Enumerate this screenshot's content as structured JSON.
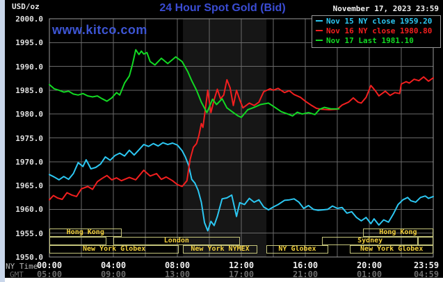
{
  "header": {
    "title": "24 Hour Spot Gold (Bid)",
    "timestamp": "November 17, 2023 23:59",
    "watermark": "www.kitco.com",
    "unit_label": "USD/oz"
  },
  "legend": [
    {
      "label": "Nov 15 NY close 1959.20",
      "color": "#2cc7f2"
    },
    {
      "label": "Nov 16 NY close 1980.80",
      "color": "#f21f1f"
    },
    {
      "label": "Nov 17 Last 1981.10",
      "color": "#12d923"
    }
  ],
  "axes": {
    "ny_time_label": "NY Time",
    "gmt_label": "GMT",
    "y_ticks": [
      "2000.0",
      "1995.0",
      "1990.0",
      "1985.0",
      "1980.0",
      "1975.0",
      "1970.0",
      "1965.0",
      "1960.0",
      "1955.0",
      "1950.0"
    ],
    "x_tick_hours": [
      0,
      4,
      8,
      12,
      16,
      20,
      24
    ],
    "x_ticks_ny": [
      "00:00",
      "04:00",
      "08:00",
      "12:00",
      "16:00",
      "20:00",
      "23:59"
    ],
    "x_ticks_gmt": [
      "05:00",
      "09:00",
      "13:00",
      "17:00",
      "21:00",
      "01:00",
      "04:59"
    ]
  },
  "sessions": [
    {
      "row": 1,
      "start": 0,
      "end": 4.5,
      "label": "Hong Kong"
    },
    {
      "row": 1,
      "start": 19.6,
      "end": 24,
      "label": "Hong Kong"
    },
    {
      "row": 2,
      "start": 0,
      "end": 3.55,
      "label": ""
    },
    {
      "row": 2,
      "start": 4.0,
      "end": 11.9,
      "label": "London"
    },
    {
      "row": 2,
      "start": 17.05,
      "end": 23.05,
      "label": "Sydney"
    },
    {
      "row": 2,
      "start": 23.05,
      "end": 24,
      "label": ""
    },
    {
      "row": 3,
      "start": 0,
      "end": 8.1,
      "label": "New York Globex"
    },
    {
      "row": 3,
      "start": 8.35,
      "end": 13.0,
      "label": "New York NYMEX"
    },
    {
      "row": 3,
      "start": 13.55,
      "end": 17.45,
      "label": "NY Globex"
    },
    {
      "row": 3,
      "start": 18.8,
      "end": 24,
      "label": "New York Globex"
    }
  ],
  "chart_data": {
    "type": "line",
    "title": "24 Hour Spot Gold (Bid)",
    "xlabel": "NY Time (hours 00:00-23:59)",
    "ylabel": "USD/oz",
    "ylim": [
      1950,
      2000
    ],
    "xlim_hours": [
      0,
      24
    ],
    "y_grid_step": 5,
    "x_grid_step_hours": 2,
    "grid": true,
    "legend_position": "top-right",
    "nymex_band_hours": [
      8.35,
      13.57
    ],
    "series": [
      {
        "name": "Nov 15 (NY close 1959.20)",
        "color": "#2cc7f2",
        "points": [
          [
            0,
            1967.3
          ],
          [
            0.3,
            1966.8
          ],
          [
            0.6,
            1966.2
          ],
          [
            0.9,
            1966.9
          ],
          [
            1.2,
            1966.3
          ],
          [
            1.5,
            1967.5
          ],
          [
            1.8,
            1969.8
          ],
          [
            2.1,
            1969.0
          ],
          [
            2.3,
            1970.4
          ],
          [
            2.6,
            1968.5
          ],
          [
            2.9,
            1968.8
          ],
          [
            3.2,
            1969.5
          ],
          [
            3.5,
            1971.0
          ],
          [
            3.8,
            1970.3
          ],
          [
            4.1,
            1971.3
          ],
          [
            4.4,
            1971.8
          ],
          [
            4.7,
            1971.2
          ],
          [
            5.0,
            1972.4
          ],
          [
            5.3,
            1971.4
          ],
          [
            5.6,
            1972.5
          ],
          [
            5.9,
            1973.6
          ],
          [
            6.2,
            1973.2
          ],
          [
            6.5,
            1973.8
          ],
          [
            6.8,
            1973.3
          ],
          [
            7.1,
            1974.0
          ],
          [
            7.4,
            1973.6
          ],
          [
            7.7,
            1973.9
          ],
          [
            8.0,
            1973.5
          ],
          [
            8.3,
            1972.3
          ],
          [
            8.5,
            1971.0
          ],
          [
            8.7,
            1969.3
          ],
          [
            8.9,
            1966.3
          ],
          [
            9.1,
            1965.5
          ],
          [
            9.3,
            1964.0
          ],
          [
            9.5,
            1961.5
          ],
          [
            9.7,
            1957.2
          ],
          [
            9.9,
            1955.5
          ],
          [
            10.1,
            1957.5
          ],
          [
            10.3,
            1956.6
          ],
          [
            10.5,
            1958.5
          ],
          [
            10.8,
            1962.2
          ],
          [
            11.1,
            1962.4
          ],
          [
            11.4,
            1963.0
          ],
          [
            11.7,
            1958.5
          ],
          [
            11.9,
            1961.4
          ],
          [
            12.2,
            1961.0
          ],
          [
            12.5,
            1962.3
          ],
          [
            12.8,
            1961.5
          ],
          [
            13.1,
            1962.0
          ],
          [
            13.4,
            1960.5
          ],
          [
            13.7,
            1959.9
          ],
          [
            14.0,
            1960.5
          ],
          [
            14.3,
            1961.0
          ],
          [
            14.7,
            1961.9
          ],
          [
            15.0,
            1962.0
          ],
          [
            15.3,
            1962.2
          ],
          [
            15.6,
            1961.5
          ],
          [
            15.9,
            1960.2
          ],
          [
            16.2,
            1960.8
          ],
          [
            16.5,
            1960.0
          ],
          [
            16.8,
            1959.8
          ],
          [
            17.1,
            1959.9
          ],
          [
            17.4,
            1960.0
          ],
          [
            17.7,
            1960.7
          ],
          [
            18.0,
            1960.2
          ],
          [
            18.3,
            1960.4
          ],
          [
            18.6,
            1959.2
          ],
          [
            18.9,
            1959.5
          ],
          [
            19.2,
            1958.3
          ],
          [
            19.5,
            1957.6
          ],
          [
            19.8,
            1958.3
          ],
          [
            20.1,
            1957.0
          ],
          [
            20.3,
            1958.0
          ],
          [
            20.6,
            1956.7
          ],
          [
            20.9,
            1957.8
          ],
          [
            21.2,
            1957.3
          ],
          [
            21.5,
            1959.0
          ],
          [
            21.8,
            1961.0
          ],
          [
            22.1,
            1962.0
          ],
          [
            22.4,
            1962.5
          ],
          [
            22.6,
            1961.8
          ],
          [
            22.9,
            1961.5
          ],
          [
            23.2,
            1962.5
          ],
          [
            23.5,
            1962.8
          ],
          [
            23.7,
            1962.3
          ],
          [
            24,
            1962.7
          ]
        ]
      },
      {
        "name": "Nov 16 (NY close 1980.80)",
        "color": "#f21f1f",
        "points": [
          [
            0,
            1962.0
          ],
          [
            0.25,
            1962.9
          ],
          [
            0.5,
            1962.4
          ],
          [
            0.8,
            1962.1
          ],
          [
            1.1,
            1963.5
          ],
          [
            1.4,
            1963.0
          ],
          [
            1.7,
            1962.7
          ],
          [
            2.0,
            1964.3
          ],
          [
            2.4,
            1964.8
          ],
          [
            2.7,
            1964.2
          ],
          [
            3.0,
            1965.8
          ],
          [
            3.3,
            1966.5
          ],
          [
            3.6,
            1967.1
          ],
          [
            3.9,
            1966.2
          ],
          [
            4.2,
            1966.6
          ],
          [
            4.5,
            1966.0
          ],
          [
            5.0,
            1966.7
          ],
          [
            5.4,
            1966.2
          ],
          [
            5.9,
            1968.2
          ],
          [
            6.3,
            1967.0
          ],
          [
            6.7,
            1967.5
          ],
          [
            7.0,
            1966.3
          ],
          [
            7.3,
            1966.8
          ],
          [
            7.7,
            1966.0
          ],
          [
            8.0,
            1965.2
          ],
          [
            8.3,
            1964.8
          ],
          [
            8.6,
            1966.0
          ],
          [
            8.8,
            1970.5
          ],
          [
            9.0,
            1973.0
          ],
          [
            9.2,
            1973.8
          ],
          [
            9.35,
            1975.5
          ],
          [
            9.5,
            1978.0
          ],
          [
            9.6,
            1977.2
          ],
          [
            9.75,
            1981.0
          ],
          [
            9.9,
            1985.0
          ],
          [
            10.1,
            1980.3
          ],
          [
            10.3,
            1983.0
          ],
          [
            10.5,
            1985.2
          ],
          [
            10.7,
            1983.2
          ],
          [
            10.9,
            1984.0
          ],
          [
            11.1,
            1987.2
          ],
          [
            11.3,
            1985.5
          ],
          [
            11.5,
            1981.8
          ],
          [
            11.7,
            1985.0
          ],
          [
            11.9,
            1983.0
          ],
          [
            12.1,
            1981.3
          ],
          [
            12.5,
            1982.3
          ],
          [
            12.8,
            1981.8
          ],
          [
            13.1,
            1982.5
          ],
          [
            13.4,
            1984.7
          ],
          [
            13.8,
            1985.3
          ],
          [
            14.0,
            1985.0
          ],
          [
            14.3,
            1985.4
          ],
          [
            14.7,
            1984.5
          ],
          [
            15.0,
            1984.9
          ],
          [
            15.3,
            1984.1
          ],
          [
            15.7,
            1983.5
          ],
          [
            16.0,
            1982.7
          ],
          [
            16.4,
            1981.8
          ],
          [
            16.7,
            1981.2
          ],
          [
            17.0,
            1981.0
          ],
          [
            17.5,
            1980.9
          ],
          [
            18.0,
            1981.0
          ],
          [
            18.3,
            1981.9
          ],
          [
            18.7,
            1982.5
          ],
          [
            19.0,
            1983.4
          ],
          [
            19.3,
            1982.5
          ],
          [
            19.5,
            1982.3
          ],
          [
            19.8,
            1983.5
          ],
          [
            20.1,
            1986.0
          ],
          [
            20.4,
            1984.8
          ],
          [
            20.6,
            1983.8
          ],
          [
            21.0,
            1984.8
          ],
          [
            21.3,
            1983.9
          ],
          [
            21.6,
            1984.5
          ],
          [
            21.9,
            1984.3
          ],
          [
            22.0,
            1986.3
          ],
          [
            22.3,
            1986.8
          ],
          [
            22.5,
            1986.5
          ],
          [
            22.8,
            1987.3
          ],
          [
            23.1,
            1987.0
          ],
          [
            23.4,
            1987.8
          ],
          [
            23.7,
            1986.9
          ],
          [
            24,
            1987.6
          ]
        ]
      },
      {
        "name": "Nov 17 (Last 1981.10)",
        "color": "#12d923",
        "points": [
          [
            0,
            1986.2
          ],
          [
            0.3,
            1985.3
          ],
          [
            0.6,
            1985.0
          ],
          [
            0.9,
            1984.6
          ],
          [
            1.2,
            1984.8
          ],
          [
            1.5,
            1984.2
          ],
          [
            1.8,
            1984.0
          ],
          [
            2.1,
            1984.3
          ],
          [
            2.4,
            1983.8
          ],
          [
            2.7,
            1983.6
          ],
          [
            3.0,
            1983.8
          ],
          [
            3.3,
            1983.2
          ],
          [
            3.6,
            1982.7
          ],
          [
            3.9,
            1983.4
          ],
          [
            4.2,
            1984.5
          ],
          [
            4.4,
            1984.0
          ],
          [
            4.7,
            1986.5
          ],
          [
            5.0,
            1988.0
          ],
          [
            5.2,
            1990.5
          ],
          [
            5.4,
            1993.5
          ],
          [
            5.6,
            1992.5
          ],
          [
            5.75,
            1993.2
          ],
          [
            5.9,
            1992.6
          ],
          [
            6.1,
            1992.9
          ],
          [
            6.3,
            1991.0
          ],
          [
            6.6,
            1990.3
          ],
          [
            7.0,
            1991.7
          ],
          [
            7.4,
            1990.6
          ],
          [
            7.9,
            1992.0
          ],
          [
            8.3,
            1991.0
          ],
          [
            8.65,
            1988.9
          ],
          [
            8.9,
            1987.0
          ],
          [
            9.2,
            1985.0
          ],
          [
            9.5,
            1982.5
          ],
          [
            9.85,
            1980.3
          ],
          [
            10.2,
            1983.1
          ],
          [
            10.45,
            1982.0
          ],
          [
            10.8,
            1983.2
          ],
          [
            11.1,
            1981.3
          ],
          [
            11.5,
            1980.3
          ],
          [
            11.8,
            1979.6
          ],
          [
            12.0,
            1979.3
          ],
          [
            12.4,
            1980.9
          ],
          [
            12.8,
            1981.4
          ],
          [
            13.2,
            1982.0
          ],
          [
            13.7,
            1982.3
          ],
          [
            14.1,
            1981.4
          ],
          [
            14.5,
            1980.5
          ],
          [
            15.0,
            1979.9
          ],
          [
            15.2,
            1979.6
          ],
          [
            15.5,
            1980.4
          ],
          [
            15.8,
            1980.0
          ],
          [
            16.2,
            1980.3
          ],
          [
            16.6,
            1979.9
          ],
          [
            16.9,
            1981.0
          ],
          [
            17.2,
            1981.4
          ],
          [
            17.6,
            1981.1
          ],
          [
            18.1,
            1981.1
          ]
        ]
      }
    ]
  },
  "colors": {
    "background": "#000000",
    "nymex_band": "#161616",
    "grid": "#6a6a6a",
    "plot_border": "#9a9a9a",
    "title_blue": "#3a4cd3",
    "session_border": "#c5c57c",
    "session_text": "#f2cf3a"
  }
}
